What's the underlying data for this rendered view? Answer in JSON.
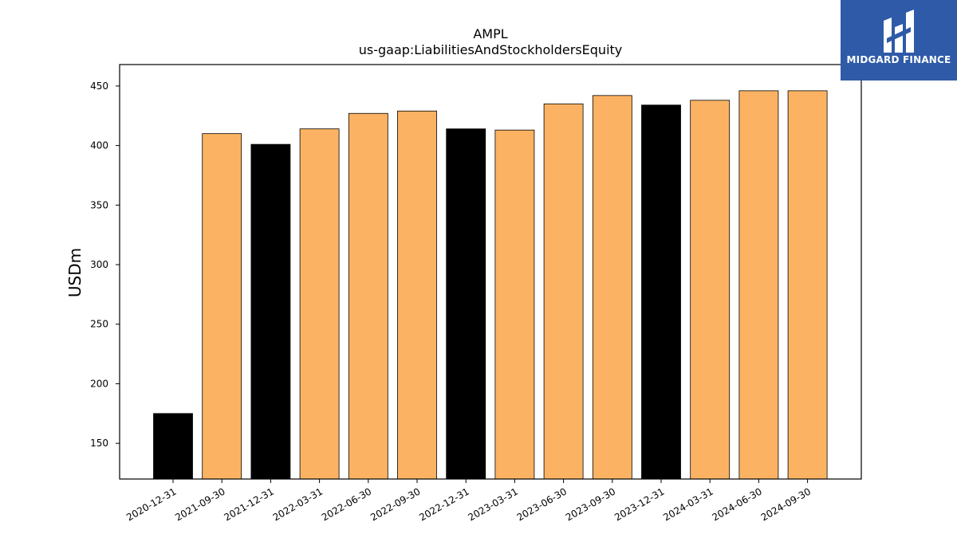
{
  "chart_data": {
    "type": "bar",
    "title": "AMPL",
    "subtitle": "us-gaap:LiabilitiesAndStockholdersEquity",
    "ylabel": "USDm",
    "xlabel": "",
    "categories": [
      "2020-12-31",
      "2021-09-30",
      "2021-12-31",
      "2022-03-31",
      "2022-06-30",
      "2022-09-30",
      "2022-12-31",
      "2023-03-31",
      "2023-06-30",
      "2023-09-30",
      "2023-12-31",
      "2024-03-31",
      "2024-06-30",
      "2024-09-30"
    ],
    "values": [
      175,
      410,
      401,
      414,
      427,
      429,
      414,
      413,
      435,
      442,
      434,
      438,
      446,
      446
    ],
    "is_year_end": [
      true,
      false,
      true,
      false,
      false,
      false,
      true,
      false,
      false,
      false,
      true,
      false,
      false,
      false
    ],
    "ylim": [
      120,
      468
    ],
    "yticks": [
      150,
      200,
      250,
      300,
      350,
      400,
      450
    ],
    "grid": false,
    "colors": {
      "quarter": "#fbb363",
      "year_end": "#000000",
      "edge": "#000000"
    }
  },
  "logo": {
    "text": "MIDGARD FINANCE",
    "background": "#2e5aa8"
  }
}
